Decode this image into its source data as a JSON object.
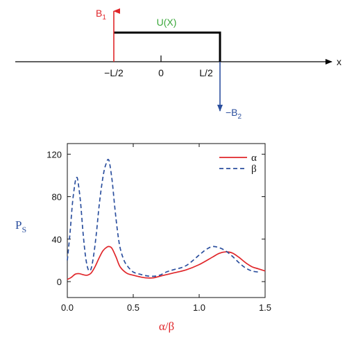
{
  "diagram": {
    "b1_label": "B",
    "b1_sub": "1",
    "b2_label": "−B",
    "b2_sub": "2",
    "potential_label": "U(X)",
    "x_label": "x",
    "left_edge_label": "−L/2",
    "center_label": "0",
    "right_edge_label": "L/2",
    "colors": {
      "b1": "#e0262a",
      "b2": "#2b4f9e",
      "potential": "#3aa83a",
      "barrier": "#000000"
    }
  },
  "chart_data": {
    "type": "line",
    "xlabel": "α/β",
    "ylabel": "P",
    "ylabel_sub": "S",
    "xlim": [
      0,
      1.5
    ],
    "ylim": [
      -15,
      130
    ],
    "xticks": [
      0.0,
      0.5,
      1.0,
      1.5
    ],
    "xtick_labels": [
      "0.0",
      "0.5",
      "1.0",
      "1.5"
    ],
    "yticks": [
      0,
      40,
      80,
      120
    ],
    "ytick_labels": [
      "0",
      "40",
      "80",
      "120"
    ],
    "legend_position": "top-right",
    "grid": false,
    "series": [
      {
        "name": "α",
        "color": "#e0262a",
        "dash": "solid",
        "x": [
          0.0,
          0.03,
          0.06,
          0.09,
          0.12,
          0.15,
          0.18,
          0.21,
          0.24,
          0.27,
          0.3,
          0.32,
          0.34,
          0.37,
          0.4,
          0.45,
          0.5,
          0.55,
          0.6,
          0.65,
          0.7,
          0.75,
          0.8,
          0.9,
          1.0,
          1.1,
          1.15,
          1.2,
          1.25,
          1.3,
          1.35,
          1.4,
          1.45,
          1.5
        ],
        "y": [
          2,
          4,
          7,
          7.5,
          6.5,
          6,
          8,
          14,
          22,
          29,
          32.5,
          33,
          31,
          23,
          14,
          8,
          6,
          4.5,
          3.5,
          3.5,
          5,
          6.5,
          8,
          11,
          16,
          23,
          26.5,
          28,
          27,
          23,
          18,
          14,
          12,
          10
        ]
      },
      {
        "name": "β",
        "color": "#2b4f9e",
        "dash": "dashed",
        "x": [
          0.0,
          0.02,
          0.04,
          0.06,
          0.07,
          0.08,
          0.1,
          0.12,
          0.14,
          0.16,
          0.18,
          0.2,
          0.22,
          0.24,
          0.26,
          0.28,
          0.3,
          0.31,
          0.32,
          0.34,
          0.36,
          0.38,
          0.4,
          0.43,
          0.46,
          0.5,
          0.55,
          0.6,
          0.65,
          0.7,
          0.75,
          0.8,
          0.9,
          1.0,
          1.05,
          1.1,
          1.15,
          1.2,
          1.25,
          1.3,
          1.35,
          1.4,
          1.45
        ],
        "y": [
          20,
          45,
          75,
          94,
          98,
          95,
          75,
          45,
          22,
          11,
          12,
          25,
          45,
          70,
          90,
          105,
          113,
          115,
          112,
          95,
          70,
          48,
          32,
          20,
          14,
          9,
          7,
          5.5,
          5,
          6,
          9,
          11,
          15,
          25,
          30,
          33,
          32,
          29,
          24,
          18,
          13,
          10,
          9
        ]
      }
    ]
  }
}
